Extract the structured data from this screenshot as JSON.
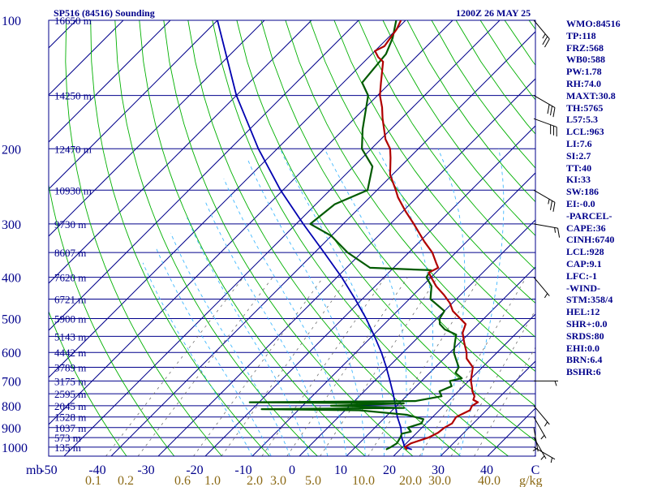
{
  "header": {
    "station_title": "SP516 (84516) Sounding",
    "valid_time": "1200Z 26 MAY 25"
  },
  "sidebar": {
    "lines": [
      "WMO:84516",
      "TP:118",
      "FRZ:568",
      "WB0:588",
      "PW:1.78",
      "RH:74.0",
      "MAXT:30.8",
      "TH:5765",
      "L57:5.3",
      "LCL:963",
      "LI:7.6",
      "SI:2.7",
      "TT:40",
      "KI:33",
      "SW:186",
      "EI:-0.0",
      "-PARCEL-",
      "CAPE:36",
      "CINH:6740",
      "LCL:928",
      "CAP:9.1",
      "LFC:-1",
      "-WIND-",
      "STM:358/4",
      "HEL:12",
      "SHR+:0.0",
      "SRDS:80",
      "EHI:0.0",
      "BRN:6.4",
      "BSHR:6"
    ]
  },
  "colors": {
    "isobar": "#00008b",
    "isotherm": "#00008b",
    "dry_adiabat": "#00b000",
    "moist_adiabat": "#40b8ff",
    "mixing_ratio": "#707070",
    "temperature": "#b00000",
    "dewpoint": "#005a00",
    "parcel": "#0000b0",
    "text": "#00008b",
    "mixing_label": "#8b6914"
  },
  "chart_data": {
    "type": "line",
    "title": "",
    "xlabel": "",
    "ylabel": "mb",
    "pressure_ticks": [
      100,
      200,
      300,
      400,
      500,
      600,
      700,
      800,
      900,
      1000
    ],
    "temperature_ticks": [
      -50,
      -40,
      -30,
      -20,
      -10,
      0,
      10,
      20,
      30,
      40
    ],
    "temperature_ticks_extra": [
      "C"
    ],
    "mixing_ratio_labels": [
      "0.1",
      "0.2",
      "0.6",
      "1.0",
      "2.0",
      "3.0",
      "5.0",
      "10.0",
      "20.0",
      "30.0",
      "40.0"
    ],
    "mixing_ratio_unit": "g/kg",
    "height_labels": [
      {
        "p": 100,
        "label": "16650 m"
      },
      {
        "p": 150,
        "label": "14250 m"
      },
      {
        "p": 200,
        "label": "12470 m"
      },
      {
        "p": 250,
        "label": "10930 m"
      },
      {
        "p": 300,
        "label": "9730 m"
      },
      {
        "p": 350,
        "label": "8607 m"
      },
      {
        "p": 400,
        "label": "7620 m"
      },
      {
        "p": 450,
        "label": "6721 m"
      },
      {
        "p": 500,
        "label": "5900 m"
      },
      {
        "p": 550,
        "label": "5143 m"
      },
      {
        "p": 600,
        "label": "4442 m"
      },
      {
        "p": 650,
        "label": "3789 m"
      },
      {
        "p": 700,
        "label": "3175 m"
      },
      {
        "p": 750,
        "label": "2595 m"
      },
      {
        "p": 800,
        "label": "2045 m"
      },
      {
        "p": 850,
        "label": "1528 m"
      },
      {
        "p": 900,
        "label": "1037 m"
      },
      {
        "p": 950,
        "label": "573 m"
      },
      {
        "p": 1000,
        "label": "135 m"
      }
    ],
    "series": [
      {
        "name": "temperature",
        "points": [
          [
            1013,
            21.5
          ],
          [
            1000,
            20.5
          ],
          [
            980,
            21.0
          ],
          [
            950,
            23.5
          ],
          [
            925,
            24.5
          ],
          [
            900,
            24.8
          ],
          [
            880,
            25.5
          ],
          [
            850,
            25.0
          ],
          [
            820,
            26.5
          ],
          [
            800,
            26.0
          ],
          [
            785,
            26.5
          ],
          [
            775,
            25.0
          ],
          [
            760,
            24.5
          ],
          [
            740,
            23.0
          ],
          [
            720,
            21.8
          ],
          [
            700,
            20.5
          ],
          [
            680,
            19.5
          ],
          [
            650,
            18.0
          ],
          [
            620,
            14.8
          ],
          [
            600,
            13.5
          ],
          [
            570,
            11.0
          ],
          [
            540,
            8.5
          ],
          [
            515,
            7.3
          ],
          [
            500,
            5.0
          ],
          [
            480,
            1.8
          ],
          [
            460,
            -0.5
          ],
          [
            440,
            -3.5
          ],
          [
            420,
            -7.0
          ],
          [
            400,
            -10.0
          ],
          [
            390,
            -11.5
          ],
          [
            380,
            -10.5
          ],
          [
            370,
            -12.0
          ],
          [
            350,
            -15.0
          ],
          [
            330,
            -19.0
          ],
          [
            300,
            -25.0
          ],
          [
            280,
            -29.5
          ],
          [
            260,
            -34.0
          ],
          [
            250,
            -36.0
          ],
          [
            230,
            -40.5
          ],
          [
            210,
            -44.0
          ],
          [
            200,
            -46.0
          ],
          [
            190,
            -49.0
          ],
          [
            170,
            -54.0
          ],
          [
            160,
            -56.5
          ],
          [
            150,
            -59.5
          ],
          [
            140,
            -62.0
          ],
          [
            125,
            -66.0
          ],
          [
            122,
            -68.0
          ],
          [
            118,
            -70.0
          ],
          [
            115,
            -69.0
          ],
          [
            110,
            -69.5
          ],
          [
            105,
            -70.0
          ],
          [
            100,
            -71.0
          ]
        ]
      },
      {
        "name": "dewpoint",
        "points": [
          [
            1013,
            17.0
          ],
          [
            1000,
            17.5
          ],
          [
            980,
            18.0
          ],
          [
            950,
            17.5
          ],
          [
            930,
            17.0
          ],
          [
            920,
            18.5
          ],
          [
            900,
            17.0
          ],
          [
            880,
            19.0
          ],
          [
            860,
            18.5
          ],
          [
            840,
            14.0
          ],
          [
            820,
            3.0
          ],
          [
            815,
            -18.0
          ],
          [
            810,
            12.0
          ],
          [
            800,
            -4.0
          ],
          [
            790,
            11.0
          ],
          [
            785,
            -22.0
          ],
          [
            780,
            13.0
          ],
          [
            760,
            17.5
          ],
          [
            740,
            16.0
          ],
          [
            720,
            17.5
          ],
          [
            700,
            16.0
          ],
          [
            690,
            18.0
          ],
          [
            670,
            15.5
          ],
          [
            650,
            15.0
          ],
          [
            620,
            12.5
          ],
          [
            600,
            10.8
          ],
          [
            570,
            9.0
          ],
          [
            545,
            7.5
          ],
          [
            530,
            4.0
          ],
          [
            515,
            1.8
          ],
          [
            500,
            0.6
          ],
          [
            480,
            0.0
          ],
          [
            450,
            -5.5
          ],
          [
            420,
            -8.0
          ],
          [
            400,
            -11.0
          ],
          [
            385,
            -11.5
          ],
          [
            380,
            -25.0
          ],
          [
            350,
            -33.0
          ],
          [
            320,
            -40.0
          ],
          [
            300,
            -47.0
          ],
          [
            270,
            -46.0
          ],
          [
            250,
            -42.0
          ],
          [
            220,
            -46.0
          ],
          [
            200,
            -52.0
          ],
          [
            180,
            -56.0
          ],
          [
            150,
            -62.0
          ],
          [
            140,
            -66.0
          ],
          [
            130,
            -66.5
          ],
          [
            120,
            -67.0
          ],
          [
            110,
            -69.0
          ],
          [
            100,
            -72.0
          ]
        ]
      },
      {
        "name": "parcel",
        "points": [
          [
            1013,
            22.5
          ],
          [
            1000,
            20.5
          ],
          [
            950,
            17.8
          ],
          [
            900,
            15.5
          ],
          [
            850,
            12.5
          ],
          [
            800,
            9.7
          ],
          [
            750,
            6.7
          ],
          [
            700,
            3.3
          ],
          [
            650,
            -0.4
          ],
          [
            600,
            -4.6
          ],
          [
            550,
            -9.5
          ],
          [
            500,
            -15.0
          ],
          [
            450,
            -21.5
          ],
          [
            400,
            -29.0
          ],
          [
            350,
            -38.0
          ],
          [
            300,
            -48.5
          ],
          [
            250,
            -60.5
          ],
          [
            200,
            -74.0
          ],
          [
            150,
            -90.0
          ],
          [
            100,
            -110.0
          ]
        ]
      }
    ],
    "wind_barbs": [
      {
        "p": 1000,
        "dir": 300,
        "spd": 5
      },
      {
        "p": 950,
        "dir": 330,
        "spd": 5
      },
      {
        "p": 900,
        "dir": 350,
        "spd": 5
      },
      {
        "p": 850,
        "dir": 330,
        "spd": 5
      },
      {
        "p": 800,
        "dir": 320,
        "spd": 5
      },
      {
        "p": 700,
        "dir": 270,
        "spd": 5
      },
      {
        "p": 400,
        "dir": 320,
        "spd": 5
      },
      {
        "p": 300,
        "dir": 280,
        "spd": 15
      },
      {
        "p": 250,
        "dir": 300,
        "spd": 25
      },
      {
        "p": 170,
        "dir": 290,
        "spd": 30
      },
      {
        "p": 150,
        "dir": 300,
        "spd": 30
      },
      {
        "p": 100,
        "dir": 320,
        "spd": 25
      }
    ]
  }
}
